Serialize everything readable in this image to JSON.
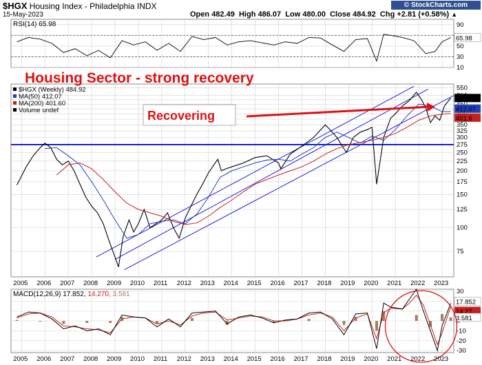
{
  "header": {
    "symbol": "$HGX",
    "name": "Housing Index - Philadelphia",
    "exchange": "INDX",
    "date": "15-May-2023",
    "open_label": "Open",
    "open": "482.49",
    "high_label": "High",
    "high": "486.07",
    "low_label": "Low",
    "low": "480.00",
    "close_label": "Close",
    "close": "484.92",
    "chg_label": "Chg",
    "chg": "+2.81 (+0.58%)",
    "chg_symbol": "▲",
    "logo": "© StockCharts.com"
  },
  "annotations": {
    "headline": "Housing Sector  -  strong recovery",
    "callout": "Recovering"
  },
  "colors": {
    "price": "#000000",
    "ma50": "#1f3fbf",
    "ma200": "#c81e1e",
    "channel": "#2020e0",
    "support": "#1020c8",
    "annotation": "#e01010",
    "rsi": "#000000",
    "macd": "#000000",
    "signal": "#c81e1e",
    "hist": "#a08060"
  },
  "chart_data": [
    {
      "type": "line",
      "panel": "rsi",
      "legend": "RSI(14) 65.98",
      "current_value": 65.98,
      "ylim": [
        10,
        100
      ],
      "yticks": [
        10,
        30,
        50,
        70,
        90
      ],
      "reference_lines": [
        30,
        70
      ],
      "x": [
        2004.8,
        2005.3,
        2005.8,
        2006.3,
        2006.8,
        2007.3,
        2007.8,
        2008.3,
        2008.8,
        2009.3,
        2009.8,
        2010.3,
        2010.8,
        2011.3,
        2011.8,
        2012.3,
        2012.8,
        2013.3,
        2013.8,
        2014.3,
        2014.8,
        2015.3,
        2015.8,
        2016.3,
        2016.8,
        2017.3,
        2017.8,
        2018.3,
        2018.8,
        2019.3,
        2019.8,
        2020.2,
        2020.5,
        2020.8,
        2021.3,
        2021.8,
        2022.3,
        2022.7,
        2023.0,
        2023.37
      ],
      "values": [
        58,
        66,
        63,
        55,
        38,
        45,
        32,
        42,
        28,
        60,
        52,
        58,
        42,
        55,
        40,
        68,
        62,
        66,
        52,
        58,
        60,
        56,
        52,
        58,
        55,
        66,
        65,
        52,
        40,
        62,
        64,
        22,
        72,
        70,
        66,
        60,
        36,
        40,
        58,
        65.98
      ]
    },
    {
      "type": "line",
      "panel": "price",
      "legend": [
        "$HGX (Weekly) 484.92",
        "MA(50) 412.07",
        "MA(200) 401.60",
        "Volume undef"
      ],
      "yscale": "log",
      "ylim": [
        55,
        575
      ],
      "yticks": [
        75,
        100,
        125,
        150,
        175,
        200,
        225,
        250,
        275,
        300,
        325,
        350,
        375,
        400,
        425,
        450,
        475,
        500,
        550
      ],
      "x_ticks": [
        "2005",
        "2006",
        "2007",
        "2008",
        "2009",
        "2010",
        "2011",
        "2012",
        "2013",
        "2014",
        "2015",
        "2016",
        "2017",
        "2018",
        "2019",
        "2020",
        "2021",
        "2022",
        "2023"
      ],
      "current_value": 484.92,
      "value_tags": [
        484.92,
        412.07,
        401.6
      ],
      "horizontal_line": 275,
      "series": [
        {
          "name": "$HGX (Weekly)",
          "x": [
            2004.8,
            2005.2,
            2005.5,
            2005.8,
            2006.0,
            2006.25,
            2006.5,
            2006.75,
            2007.0,
            2007.25,
            2007.5,
            2007.75,
            2008.0,
            2008.25,
            2008.5,
            2008.75,
            2009.0,
            2009.15,
            2009.35,
            2009.6,
            2009.8,
            2010.0,
            2010.25,
            2010.5,
            2010.75,
            2011.0,
            2011.25,
            2011.5,
            2011.75,
            2012.0,
            2012.25,
            2012.5,
            2012.75,
            2013.0,
            2013.4,
            2013.55,
            2013.75,
            2014.0,
            2014.5,
            2015.0,
            2015.5,
            2016.0,
            2016.1,
            2016.5,
            2017.0,
            2017.5,
            2018.0,
            2018.2,
            2018.5,
            2018.9,
            2019.2,
            2019.5,
            2019.8,
            2020.0,
            2020.2,
            2020.5,
            2020.8,
            2021.0,
            2021.3,
            2021.6,
            2021.9,
            2022.1,
            2022.3,
            2022.5,
            2022.7,
            2022.9,
            2023.1,
            2023.37
          ],
          "values": [
            168,
            210,
            240,
            265,
            280,
            265,
            230,
            215,
            225,
            200,
            170,
            145,
            130,
            120,
            105,
            85,
            70,
            62,
            90,
            110,
            95,
            105,
            125,
            100,
            105,
            110,
            120,
            100,
            88,
            112,
            130,
            150,
            170,
            195,
            230,
            200,
            205,
            210,
            220,
            235,
            240,
            220,
            205,
            245,
            270,
            300,
            350,
            330,
            300,
            250,
            300,
            320,
            330,
            340,
            170,
            300,
            380,
            400,
            440,
            470,
            520,
            480,
            430,
            360,
            390,
            370,
            440,
            484.92
          ]
        },
        {
          "name": "MA(50)",
          "x": [
            2006.0,
            2006.5,
            2007.0,
            2007.5,
            2008.0,
            2008.5,
            2009.0,
            2009.5,
            2010.0,
            2010.5,
            2011.0,
            2011.5,
            2012.0,
            2012.5,
            2013.0,
            2013.5,
            2014.0,
            2014.5,
            2015.0,
            2015.5,
            2016.0,
            2016.5,
            2017.0,
            2017.5,
            2018.0,
            2018.5,
            2019.0,
            2019.5,
            2020.0,
            2020.5,
            2021.0,
            2021.5,
            2022.0,
            2022.5,
            2023.0,
            2023.37
          ],
          "values": [
            262,
            265,
            240,
            215,
            175,
            140,
            110,
            88,
            92,
            105,
            108,
            110,
            105,
            118,
            145,
            185,
            200,
            210,
            220,
            228,
            230,
            225,
            245,
            265,
            300,
            320,
            300,
            280,
            305,
            290,
            330,
            390,
            450,
            440,
            410,
            412.07
          ]
        },
        {
          "name": "MA(200)",
          "x": [
            2006.5,
            2007.0,
            2007.5,
            2008.0,
            2008.5,
            2009.0,
            2009.5,
            2010.0,
            2010.5,
            2011.0,
            2011.5,
            2012.0,
            2012.5,
            2013.0,
            2013.5,
            2014.0,
            2014.5,
            2015.0,
            2015.5,
            2016.0,
            2016.5,
            2017.0,
            2017.5,
            2018.0,
            2018.5,
            2019.0,
            2019.5,
            2020.0,
            2020.5,
            2021.0,
            2021.5,
            2022.0,
            2022.5,
            2023.0,
            2023.37
          ],
          "values": [
            190,
            215,
            220,
            205,
            180,
            155,
            135,
            125,
            120,
            115,
            108,
            104,
            106,
            115,
            128,
            140,
            155,
            170,
            180,
            190,
            200,
            210,
            225,
            245,
            262,
            275,
            282,
            290,
            300,
            315,
            340,
            370,
            390,
            398,
            401.6
          ]
        }
      ],
      "trend_channel": [
        {
          "x": [
            2008.2,
            2021.8
          ],
          "values": [
            70,
            560
          ]
        },
        {
          "x": [
            2009.0,
            2022.4
          ],
          "values": [
            68,
            540
          ]
        },
        {
          "x": [
            2009.4,
            2023.5
          ],
          "values": [
            60,
            500
          ]
        }
      ]
    },
    {
      "type": "line",
      "panel": "macd",
      "legend": "MACD(12,26,9) 17.852, 14.270, 3.581",
      "legend_values": [
        17.852,
        14.27,
        3.581
      ],
      "ylim": [
        -32,
        32
      ],
      "yticks": [
        -30,
        -20,
        -10,
        0,
        10,
        20,
        30
      ],
      "series": [
        {
          "name": "MACD(12,26,9)",
          "x": [
            2004.8,
            2005.3,
            2005.8,
            2006.3,
            2006.8,
            2007.3,
            2007.8,
            2008.3,
            2008.8,
            2009.3,
            2009.8,
            2010.3,
            2010.8,
            2011.3,
            2011.8,
            2012.3,
            2012.8,
            2013.3,
            2013.8,
            2014.3,
            2014.8,
            2015.3,
            2015.8,
            2016.3,
            2016.8,
            2017.3,
            2017.8,
            2018.3,
            2018.8,
            2019.3,
            2019.8,
            2020.2,
            2020.5,
            2020.8,
            2021.3,
            2021.6,
            2021.9,
            2022.2,
            2022.5,
            2022.8,
            2023.0,
            2023.37
          ],
          "values": [
            4,
            9,
            8,
            2,
            -8,
            -5,
            -10,
            -8,
            -14,
            6,
            4,
            3,
            -6,
            2,
            -6,
            8,
            9,
            10,
            -3,
            4,
            6,
            3,
            -2,
            1,
            2,
            8,
            9,
            2,
            -14,
            7,
            8,
            -28,
            18,
            14,
            12,
            22,
            32,
            10,
            -10,
            -30,
            -5,
            17.852
          ]
        },
        {
          "name": "Signal",
          "x": [
            2004.8,
            2005.3,
            2005.8,
            2006.3,
            2006.8,
            2007.3,
            2007.8,
            2008.3,
            2008.8,
            2009.3,
            2009.8,
            2010.3,
            2010.8,
            2011.3,
            2011.8,
            2012.3,
            2012.8,
            2013.3,
            2013.8,
            2014.3,
            2014.8,
            2015.3,
            2015.8,
            2016.3,
            2016.8,
            2017.3,
            2017.8,
            2018.3,
            2018.8,
            2019.3,
            2019.8,
            2020.2,
            2020.5,
            2020.8,
            2021.3,
            2021.6,
            2021.9,
            2022.2,
            2022.5,
            2022.8,
            2023.0,
            2023.37
          ],
          "values": [
            3,
            7,
            8,
            4,
            -5,
            -6,
            -8,
            -9,
            -12,
            2,
            4,
            3,
            -3,
            0,
            -4,
            5,
            8,
            9,
            1,
            3,
            5,
            4,
            0,
            0,
            2,
            6,
            8,
            4,
            -10,
            3,
            7,
            -18,
            8,
            13,
            12,
            18,
            26,
            16,
            -4,
            -24,
            -12,
            14.27
          ]
        },
        {
          "name": "Histogram",
          "x": [
            2004.8,
            2005.8,
            2006.8,
            2007.8,
            2008.8,
            2009.3,
            2010.8,
            2012.3,
            2013.8,
            2015.8,
            2017.3,
            2018.8,
            2019.3,
            2020.2,
            2020.5,
            2021.9,
            2022.5,
            2023.0,
            2023.37
          ],
          "values": [
            1,
            0,
            -3,
            -2,
            -2,
            4,
            -3,
            3,
            -4,
            -2,
            2,
            -4,
            4,
            -10,
            10,
            6,
            -6,
            7,
            3.581
          ]
        }
      ]
    }
  ]
}
